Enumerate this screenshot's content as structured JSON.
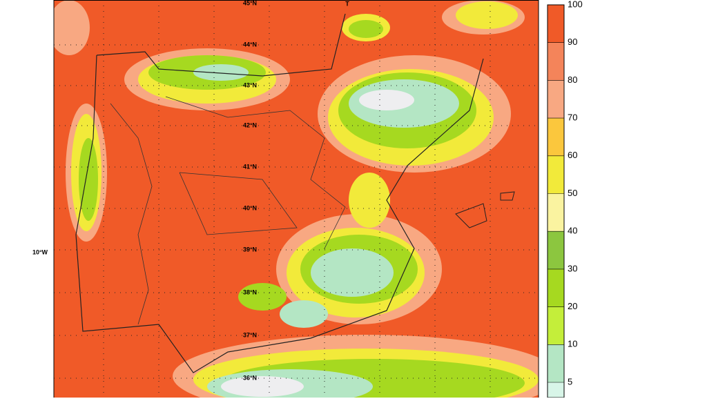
{
  "map": {
    "lat_labels": [
      "45°N",
      "44°N",
      "43°N",
      "42°N",
      "41°N",
      "40°N",
      "39°N",
      "38°N",
      "37°N",
      "36°N"
    ],
    "lon_label": "10°W",
    "north_marker": "T",
    "colorbar": {
      "labels": [
        "100",
        "90",
        "80",
        "70",
        "60",
        "50",
        "40",
        "30",
        "20",
        "10",
        "5"
      ],
      "colors": [
        "#f05a28",
        "#f4845a",
        "#f8a882",
        "#fbc73d",
        "#f2ea3a",
        "#faf3a0",
        "#8cc63f",
        "#a6d920",
        "#c4ee3a",
        "#b4e6c4",
        "#d8f5e8"
      ]
    }
  }
}
